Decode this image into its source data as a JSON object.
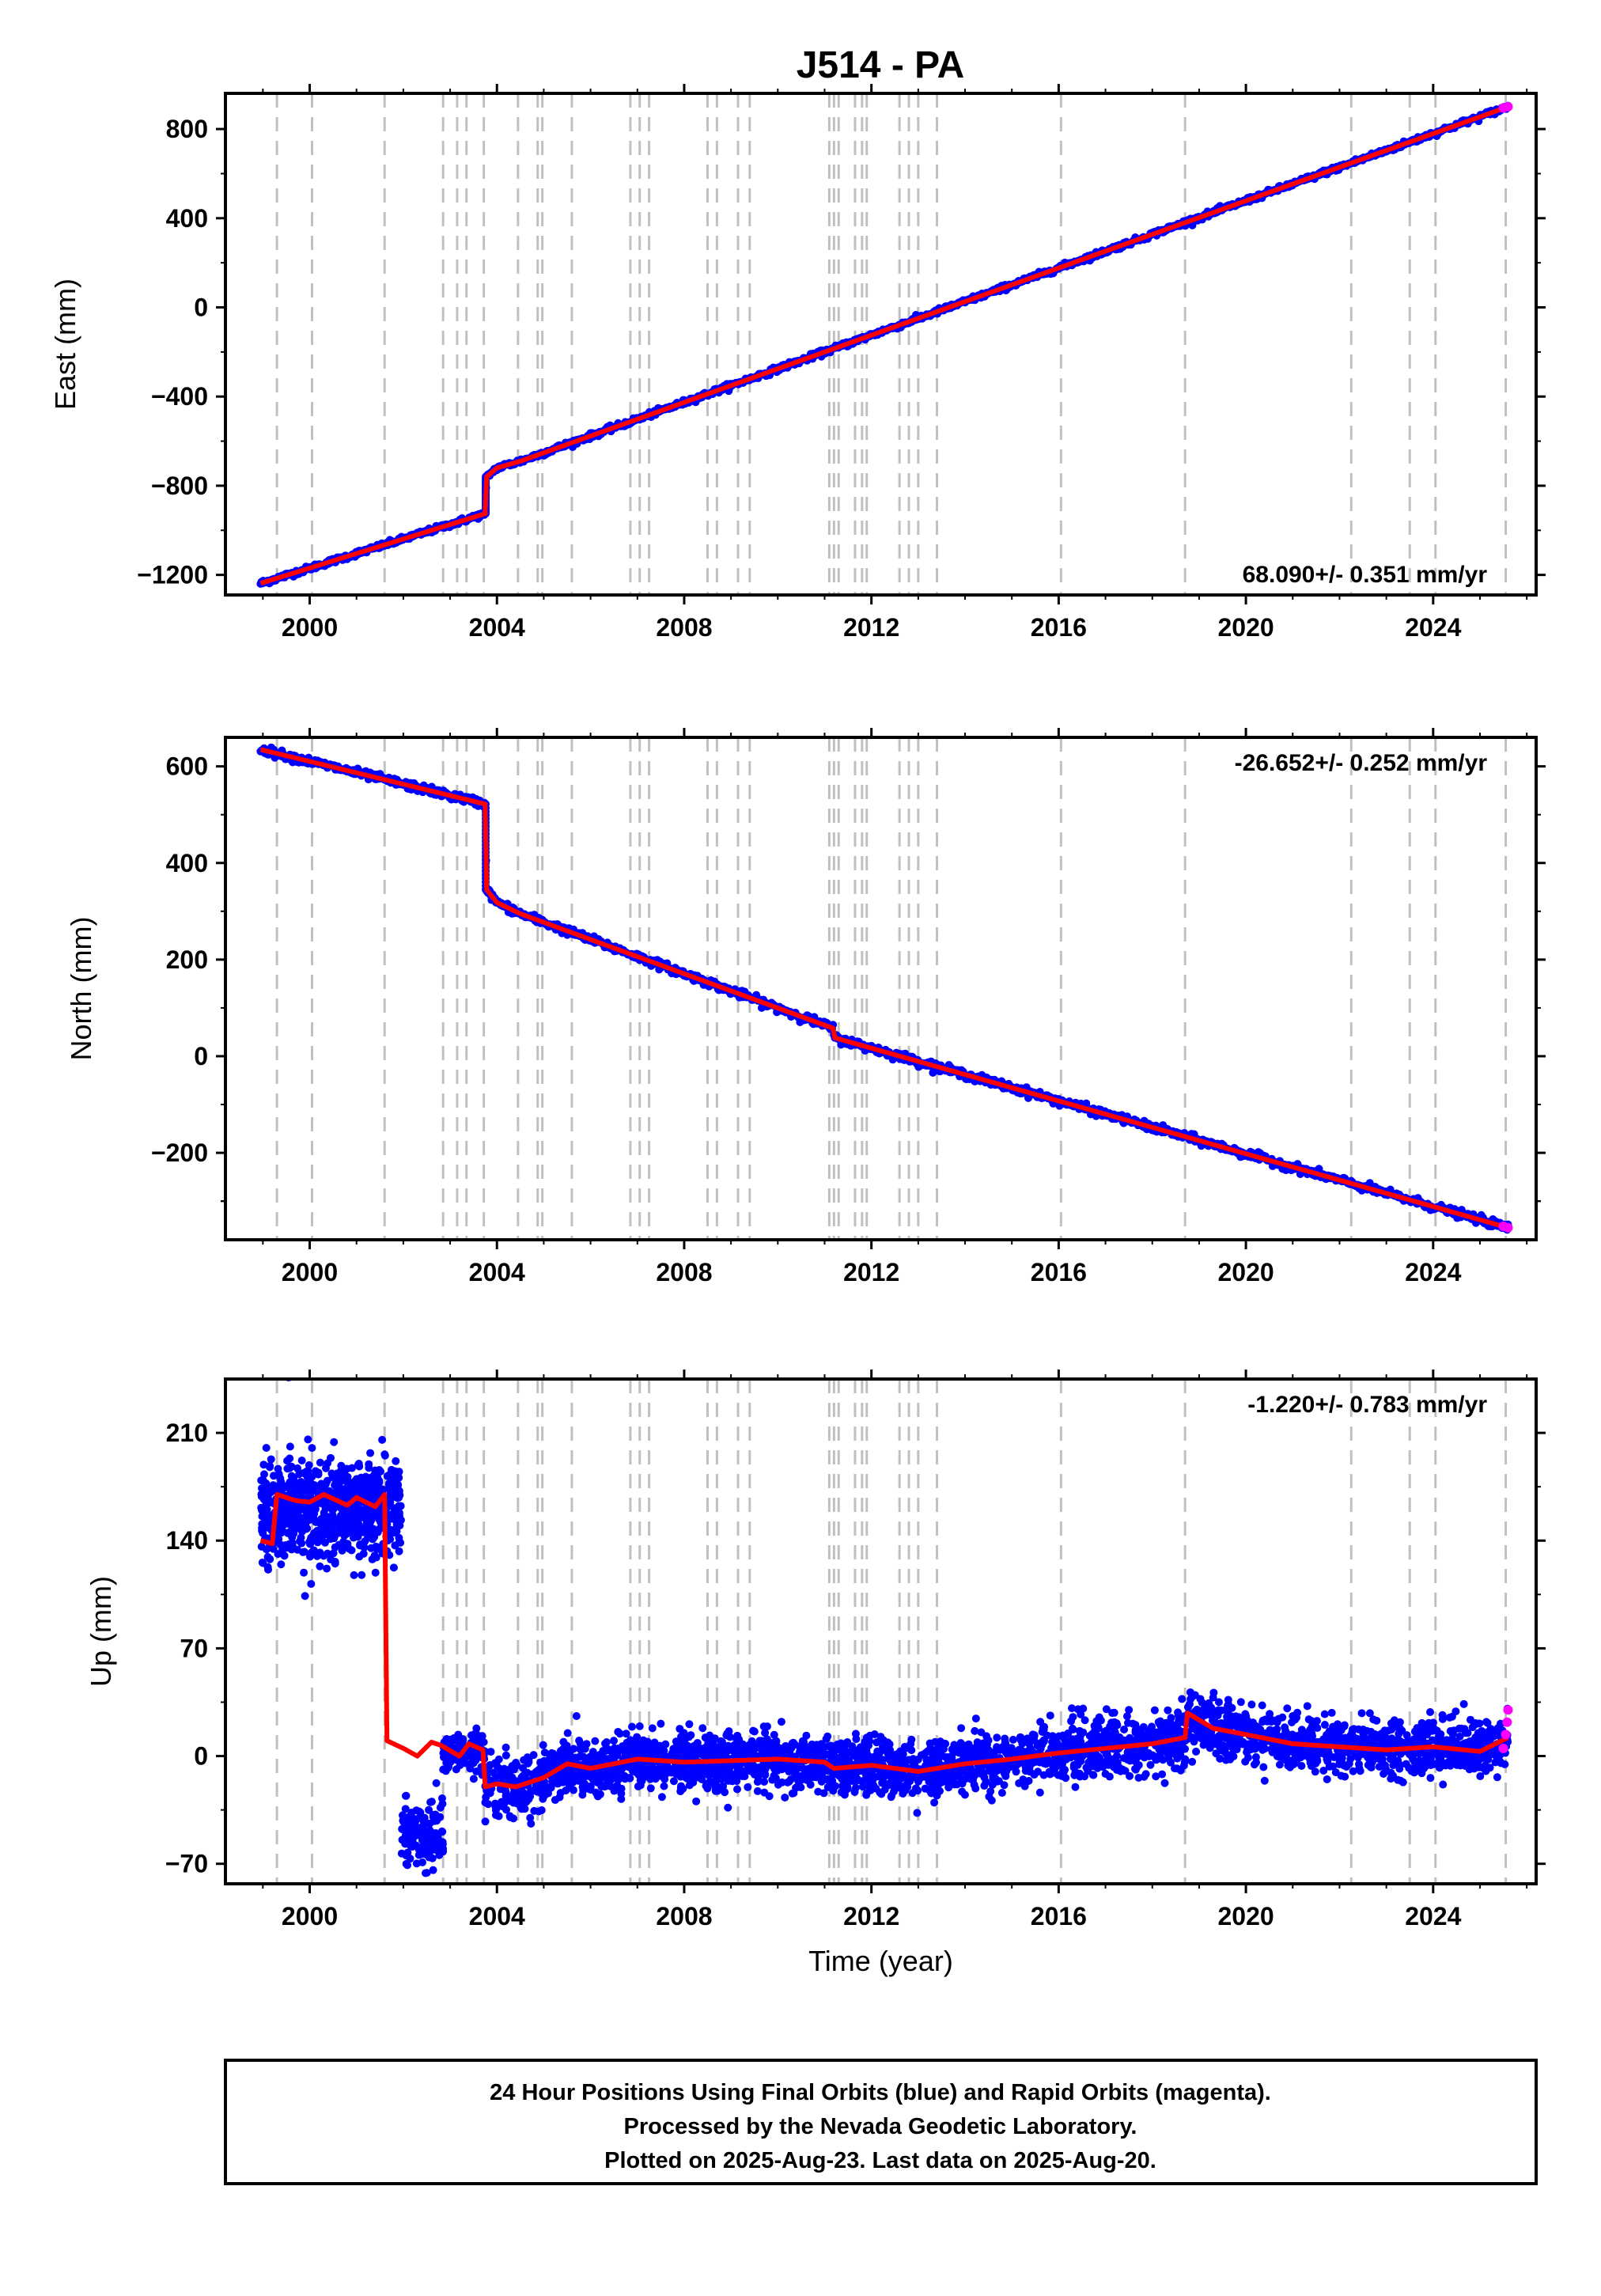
{
  "title": "J514 - PA",
  "colors": {
    "final": "#0000ff",
    "rapid": "#ff00ff",
    "model": "#ff0000",
    "steps": "#c0c0c0"
  },
  "chart_data": [
    {
      "type": "scatter",
      "ylabel": "East (mm)",
      "xlim": [
        1998.2,
        2026.2
      ],
      "ylim": [
        -1290,
        960
      ],
      "yticks": [
        -1200,
        -800,
        -400,
        0,
        400,
        800
      ],
      "xticks": [
        2000,
        2004,
        2008,
        2012,
        2016,
        2020,
        2024
      ],
      "rate": "68.090+/- 0.351 mm/yr",
      "rate_position": "bottom-right",
      "model": [
        [
          1998.95,
          -1238
        ],
        [
          2003.75,
          -925
        ],
        [
          2003.78,
          -760
        ],
        [
          2004.0,
          -720
        ],
        [
          2004.5,
          -690
        ],
        [
          2025.6,
          900
        ]
      ],
      "jitter": 6,
      "rapid": [
        [
          2025.5,
          895
        ],
        [
          2025.6,
          900
        ]
      ]
    },
    {
      "type": "scatter",
      "ylabel": "North (mm)",
      "xlim": [
        1998.2,
        2026.2
      ],
      "ylim": [
        -380,
        660
      ],
      "yticks": [
        -200,
        0,
        200,
        400,
        600
      ],
      "xticks": [
        2000,
        2004,
        2008,
        2012,
        2016,
        2020,
        2024
      ],
      "rate": "-26.652+/- 0.252 mm/yr",
      "rate_position": "top-right",
      "model": [
        [
          1998.95,
          635
        ],
        [
          2003.75,
          522
        ],
        [
          2003.78,
          345
        ],
        [
          2004.0,
          318
        ],
        [
          2004.5,
          295
        ],
        [
          2011.18,
          58
        ],
        [
          2011.22,
          38
        ],
        [
          2025.6,
          -355
        ]
      ],
      "jitter": 4,
      "rapid": [
        [
          2025.5,
          -352
        ],
        [
          2025.6,
          -355
        ]
      ]
    },
    {
      "type": "scatter",
      "ylabel": "Up (mm)",
      "xlabel": "Time (year)",
      "xlim": [
        1998.2,
        2026.2
      ],
      "ylim": [
        -83,
        245
      ],
      "yticks": [
        -70,
        0,
        70,
        140,
        210
      ],
      "xticks": [
        2000,
        2004,
        2008,
        2012,
        2016,
        2020,
        2024
      ],
      "rate": "-1.220+/- 0.783 mm/yr",
      "rate_position": "top-right",
      "model": [
        [
          1998.95,
          140
        ],
        [
          1999.2,
          138
        ],
        [
          1999.3,
          170
        ],
        [
          1999.7,
          166
        ],
        [
          2000.0,
          165
        ],
        [
          2000.3,
          170
        ],
        [
          2000.8,
          163
        ],
        [
          2001.0,
          168
        ],
        [
          2001.4,
          162
        ],
        [
          2001.6,
          170
        ],
        [
          2001.65,
          10
        ],
        [
          2002.0,
          5
        ],
        [
          2002.3,
          0
        ],
        [
          2002.6,
          9
        ],
        [
          2002.8,
          7
        ],
        [
          2003.2,
          0
        ],
        [
          2003.4,
          8
        ],
        [
          2003.7,
          4
        ],
        [
          2003.75,
          -20
        ],
        [
          2004.0,
          -18
        ],
        [
          2004.4,
          -20
        ],
        [
          2005.0,
          -14
        ],
        [
          2005.5,
          -5
        ],
        [
          2006.0,
          -8
        ],
        [
          2007.0,
          -2
        ],
        [
          2008.0,
          -4
        ],
        [
          2009.0,
          -3
        ],
        [
          2010.0,
          -2
        ],
        [
          2011.0,
          -4
        ],
        [
          2011.2,
          -8
        ],
        [
          2012.0,
          -6
        ],
        [
          2013.0,
          -10
        ],
        [
          2014.0,
          -5
        ],
        [
          2015.0,
          -2
        ],
        [
          2016.0,
          2
        ],
        [
          2017.0,
          5
        ],
        [
          2018.0,
          8
        ],
        [
          2018.7,
          12
        ],
        [
          2018.75,
          28
        ],
        [
          2019.3,
          18
        ],
        [
          2020.0,
          14
        ],
        [
          2021.0,
          8
        ],
        [
          2022.0,
          6
        ],
        [
          2023.0,
          4
        ],
        [
          2024.0,
          6
        ],
        [
          2025.0,
          3
        ],
        [
          2025.6,
          12
        ]
      ],
      "clusters": [
        {
          "x": [
            1998.95,
            2001.95
          ],
          "center": 160,
          "spread": 16,
          "n": 800,
          "outliers": [
            [
              1999.55,
              246
            ],
            [
              1999.9,
              104
            ]
          ]
        },
        {
          "x": [
            2001.95,
            2002.85
          ],
          "center": -52,
          "spread": 9,
          "n": 160,
          "outliers": []
        },
        {
          "x": [
            2002.85,
            2003.75
          ],
          "center": 3,
          "spread": 6,
          "n": 120,
          "outliers": []
        },
        {
          "x": [
            2003.75,
            2025.6
          ],
          "center": "model",
          "spread": 9,
          "n": 3200,
          "outliers": [
            [
              2019.3,
              38
            ],
            [
              2005.7,
              26
            ],
            [
              2017.5,
              30
            ]
          ]
        }
      ],
      "rapid": [
        [
          2025.5,
          5
        ],
        [
          2025.55,
          14
        ],
        [
          2025.58,
          22
        ],
        [
          2025.6,
          30
        ]
      ]
    }
  ],
  "step_lines": [
    1999.3,
    2000.05,
    2001.6,
    2002.85,
    2003.15,
    2003.35,
    2003.72,
    2004.45,
    2004.87,
    2004.97,
    2005.6,
    2006.85,
    2007.05,
    2007.25,
    2008.5,
    2008.7,
    2009.15,
    2009.4,
    2011.1,
    2011.2,
    2011.3,
    2011.65,
    2011.8,
    2011.9,
    2012.6,
    2012.8,
    2013.0,
    2013.4,
    2016.05,
    2018.7,
    2022.25,
    2023.5,
    2024.05,
    2025.55
  ],
  "footer": {
    "line1": "24 Hour Positions Using Final Orbits (blue) and Rapid Orbits (magenta).",
    "line2": "Processed by the Nevada Geodetic Laboratory.",
    "line3": "Plotted on 2025-Aug-23. Last data on 2025-Aug-20."
  }
}
